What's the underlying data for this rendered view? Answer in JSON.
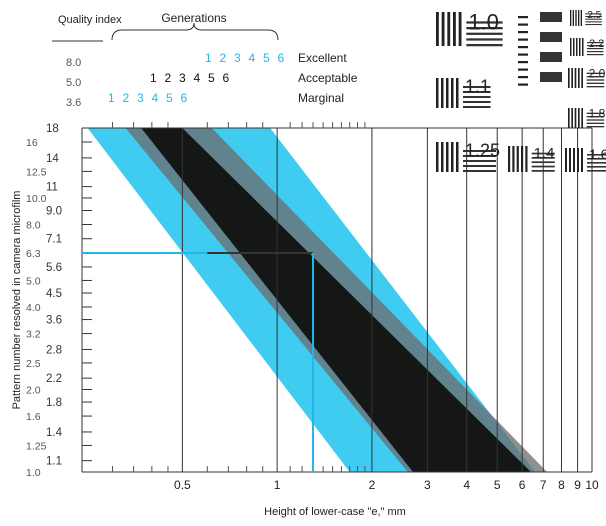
{
  "chart_data": {
    "type": "line",
    "xlabel": "Height of lower-case \"e,\" mm",
    "ylabel": "Pattern number resolved in camera microfilm",
    "xscale": "log",
    "yscale": "log",
    "xlim": [
      0.24,
      10
    ],
    "ylim": [
      1.0,
      18
    ],
    "x_ticks": [
      {
        "value": 0.5,
        "label": "0.5"
      },
      {
        "value": 1,
        "label": "1"
      },
      {
        "value": 2,
        "label": "2"
      },
      {
        "value": 3,
        "label": "3"
      },
      {
        "value": 4,
        "label": "4"
      },
      {
        "value": 5,
        "label": "5"
      },
      {
        "value": 6,
        "label": "6"
      },
      {
        "value": 7,
        "label": "7"
      },
      {
        "value": 8,
        "label": "8"
      },
      {
        "value": 9,
        "label": "9"
      },
      {
        "value": 10,
        "label": "10"
      }
    ],
    "y_ticks": [
      {
        "value": 18,
        "label": "18"
      },
      {
        "value": 16,
        "label": "16"
      },
      {
        "value": 14,
        "label": "14"
      },
      {
        "value": 12.5,
        "label": "12.5"
      },
      {
        "value": 11,
        "label": "11"
      },
      {
        "value": 10.0,
        "label": "10.0"
      },
      {
        "value": 9.0,
        "label": "9.0"
      },
      {
        "value": 8.0,
        "label": "8.0"
      },
      {
        "value": 7.1,
        "label": "7.1"
      },
      {
        "value": 6.3,
        "label": "6.3"
      },
      {
        "value": 5.6,
        "label": "5.6"
      },
      {
        "value": 5.0,
        "label": "5.0"
      },
      {
        "value": 4.5,
        "label": "4.5"
      },
      {
        "value": 4.0,
        "label": "4.0"
      },
      {
        "value": 3.6,
        "label": "3.6"
      },
      {
        "value": 3.2,
        "label": "3.2"
      },
      {
        "value": 2.8,
        "label": "2.8"
      },
      {
        "value": 2.5,
        "label": "2.5"
      },
      {
        "value": 2.2,
        "label": "2.2"
      },
      {
        "value": 2.0,
        "label": "2.0"
      },
      {
        "value": 1.8,
        "label": "1.8"
      },
      {
        "value": 1.6,
        "label": "1.6"
      },
      {
        "value": 1.4,
        "label": "1.4"
      },
      {
        "value": 1.25,
        "label": "1.25"
      },
      {
        "value": 1.1,
        "label": "1.1"
      },
      {
        "value": 1.0,
        "label": "1.0"
      }
    ],
    "quality_index": {
      "title": "Quality index",
      "values": [
        "8.0",
        "5.0",
        "3.6"
      ]
    },
    "generations": {
      "title": "Generations",
      "rows": [
        {
          "labels": [
            "1",
            "2",
            "3",
            "4",
            "5",
            "6"
          ],
          "color": "#22b7e6",
          "name": "Excellent"
        },
        {
          "labels": [
            "1",
            "2",
            "3",
            "4",
            "5",
            "6"
          ],
          "color": "#111111",
          "name": "Acceptable"
        },
        {
          "labels": [
            "1",
            "2",
            "3",
            "4",
            "5",
            "6"
          ],
          "color": "#22b7e6",
          "name": "Marginal"
        }
      ]
    },
    "bands": {
      "cyan_outer": {
        "x_at_top": [
          0.25,
          0.95
        ],
        "x_at_bottom": [
          1.7,
          6.6
        ],
        "color": "#1ec3ef"
      },
      "dark_inner": {
        "x_at_top": [
          0.37,
          0.5
        ],
        "x_at_bottom": [
          2.7,
          6.4
        ],
        "color": "#111111"
      }
    },
    "reference_lines": [
      {
        "y": 6.3,
        "x_from": 0.24,
        "x_to": 0.6,
        "color": "#22b7e6"
      },
      {
        "y": 6.3,
        "x_from": 0.6,
        "x_to": 1.3,
        "color": "#333333"
      },
      {
        "x": 1.3,
        "y_from": 1.0,
        "y_to": 6.3,
        "color": "#22b7e6"
      }
    ],
    "resolution_patterns": [
      "1.0",
      "1.1",
      "1.25",
      "1.4",
      "1.6",
      "1.8",
      "2.0",
      "2.2",
      "2.5"
    ]
  },
  "colors": {
    "cyan": "#22b7e6",
    "black": "#111111"
  }
}
